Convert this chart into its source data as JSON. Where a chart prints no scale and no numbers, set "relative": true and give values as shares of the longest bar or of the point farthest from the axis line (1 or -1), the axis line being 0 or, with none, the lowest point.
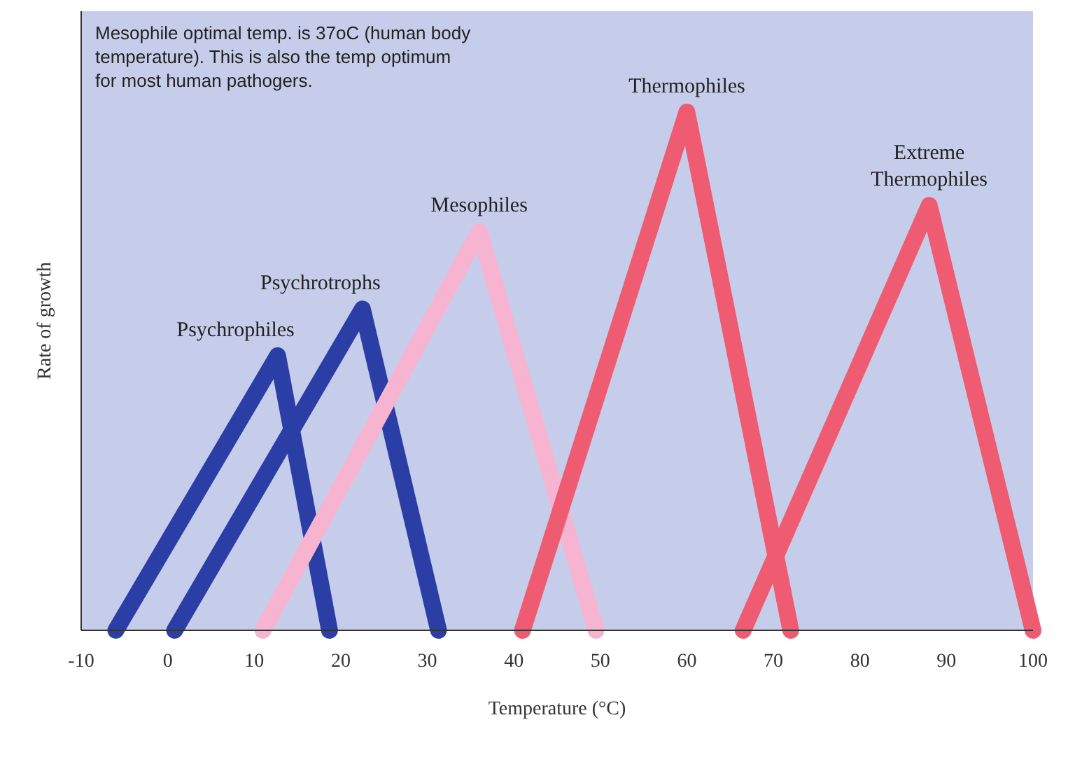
{
  "chart_data": {
    "type": "line",
    "relative": true,
    "xlabel": "Temperature (°C)",
    "ylabel": "Rate of growth",
    "xlim": [
      -10,
      100
    ],
    "xticks": [
      -10,
      0,
      10,
      20,
      30,
      40,
      50,
      60,
      70,
      80,
      90,
      100
    ],
    "grid": false,
    "marker": "none",
    "line_style": "solid",
    "annotations": [
      "Mesophile optimal temp. is 37oC (human body temperature). This is also the temp optimum for most human pathogers."
    ],
    "series": [
      {
        "name": "Psychrophiles",
        "color": "#2b3ea6",
        "x": [
          -6,
          12.7,
          18.7
        ],
        "values": [
          0,
          0.53,
          0
        ]
      },
      {
        "name": "Psychrotrophs",
        "color": "#2b3ea6",
        "x": [
          0.8,
          22.5,
          31.3
        ],
        "values": [
          0,
          0.62,
          0
        ]
      },
      {
        "name": "Mesophiles",
        "color": "#f6b4d0",
        "x": [
          11,
          36,
          49.5
        ],
        "values": [
          0,
          0.77,
          0
        ]
      },
      {
        "name": "Thermophiles",
        "color": "#ef5b70",
        "x": [
          41,
          60,
          72
        ],
        "values": [
          0,
          1,
          0
        ]
      },
      {
        "name": "Extreme Thermophiles",
        "color": "#ef5b70",
        "x": [
          66.5,
          88,
          100
        ],
        "values": [
          0,
          0.82,
          0
        ]
      }
    ]
  }
}
